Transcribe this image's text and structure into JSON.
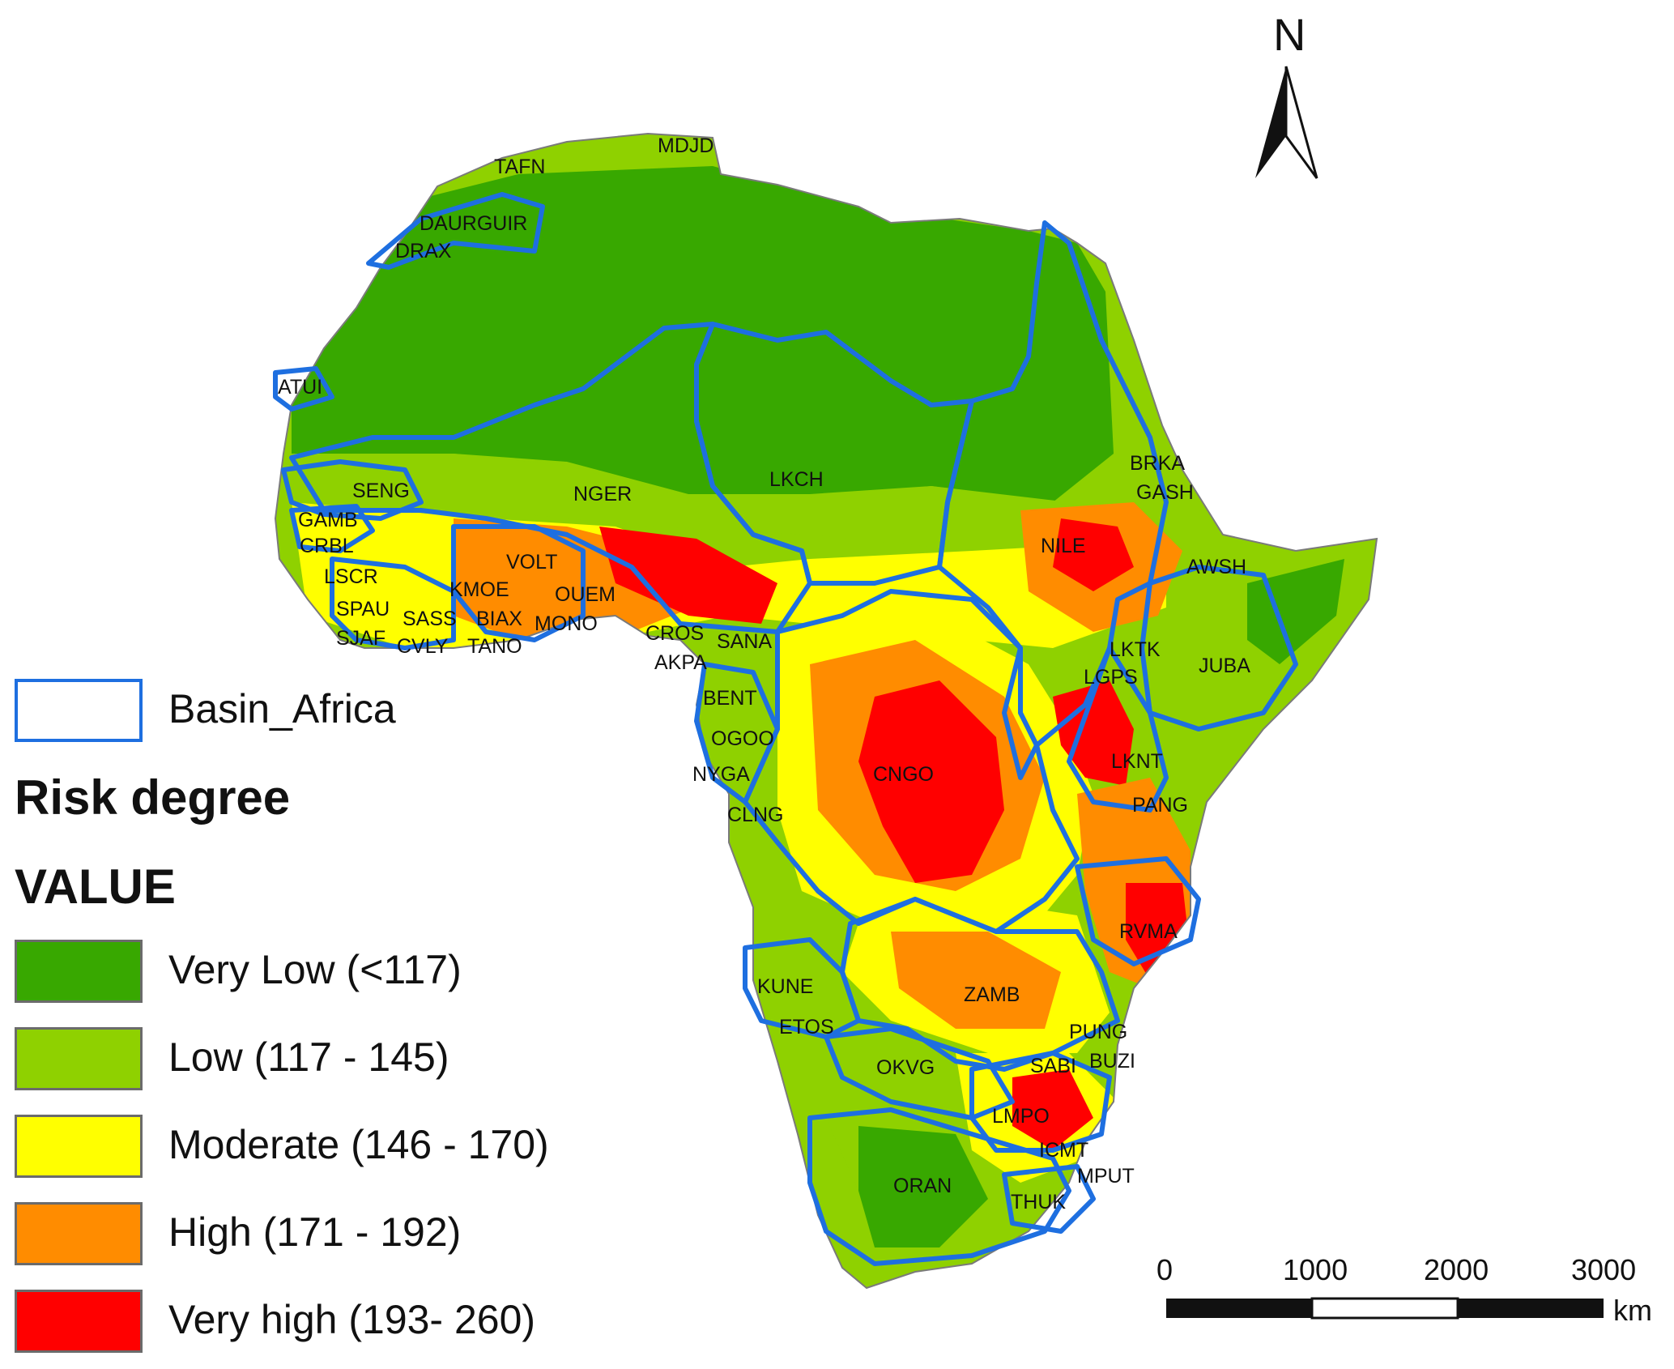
{
  "north_arrow": {
    "label": "N"
  },
  "scale_bar": {
    "ticks": [
      "0",
      "1000",
      "2000",
      "3000"
    ],
    "unit": "km"
  },
  "legend": {
    "basin_label": "Basin_Africa",
    "title": "Risk degree",
    "subtitle": "VALUE",
    "classes": [
      {
        "label": "Very Low (<117)",
        "color": "#38a800"
      },
      {
        "label": "Low (117 - 145)",
        "color": "#8fd100"
      },
      {
        "label": "Moderate (146 - 170)",
        "color": "#ffff00"
      },
      {
        "label": "High (171 - 192)",
        "color": "#ff8c00"
      },
      {
        "label": "Very high (193- 260)",
        "color": "#ff0000"
      }
    ]
  },
  "colors": {
    "basin_outline": "#1e6fe0",
    "very_low": "#38a800",
    "low": "#8fd100",
    "moderate": "#ffff00",
    "high": "#ff8c00",
    "very_high": "#ff0000"
  },
  "basins": [
    "MDJD",
    "TAFN",
    "DAURGUIR",
    "DRAX",
    "ATUI",
    "LKCH",
    "BRKA",
    "GASH",
    "NGER",
    "SENG",
    "GAMB",
    "CRBL",
    "NILE",
    "AWSH",
    "VOLT",
    "LSCR",
    "KMOE",
    "OUEM",
    "SPAU",
    "SASS",
    "BIAX",
    "MONO",
    "SJAF",
    "CVLY",
    "TANO",
    "CROS",
    "SANA",
    "AKPA",
    "LKTK",
    "JUBA",
    "LGPS",
    "BENT",
    "OGOO",
    "CNGO",
    "NYGA",
    "LKNT",
    "CLNG",
    "PANG",
    "RVMA",
    "KUNE",
    "ZAMB",
    "ETOS",
    "PUNG",
    "OKVG",
    "SABI",
    "BUZI",
    "LMPO",
    "ICMT",
    "MPUT",
    "ORAN",
    "THUK"
  ]
}
